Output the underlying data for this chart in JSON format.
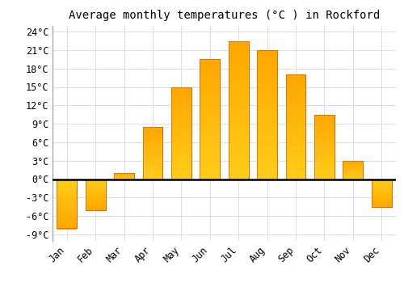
{
  "title": "Average monthly temperatures (°C ) in Rockford",
  "months": [
    "Jan",
    "Feb",
    "Mar",
    "Apr",
    "May",
    "Jun",
    "Jul",
    "Aug",
    "Sep",
    "Oct",
    "Nov",
    "Dec"
  ],
  "temperatures": [
    -8,
    -5,
    1,
    8.5,
    15,
    19.5,
    22.5,
    21,
    17,
    10.5,
    3,
    -4.5
  ],
  "bar_color": "#FFA726",
  "bar_edge_color": "#E65C00",
  "bar_color_gradient_top": "#FFD54F",
  "background_color": "#FFFFFF",
  "grid_color": "#DDDDDD",
  "ylim": [
    -10,
    25
  ],
  "yticks": [
    -9,
    -6,
    -3,
    0,
    3,
    6,
    9,
    12,
    15,
    18,
    21,
    24
  ],
  "ylabel_suffix": "°C",
  "title_fontsize": 10,
  "tick_fontsize": 8.5,
  "figsize": [
    5.0,
    3.5
  ],
  "dpi": 100
}
